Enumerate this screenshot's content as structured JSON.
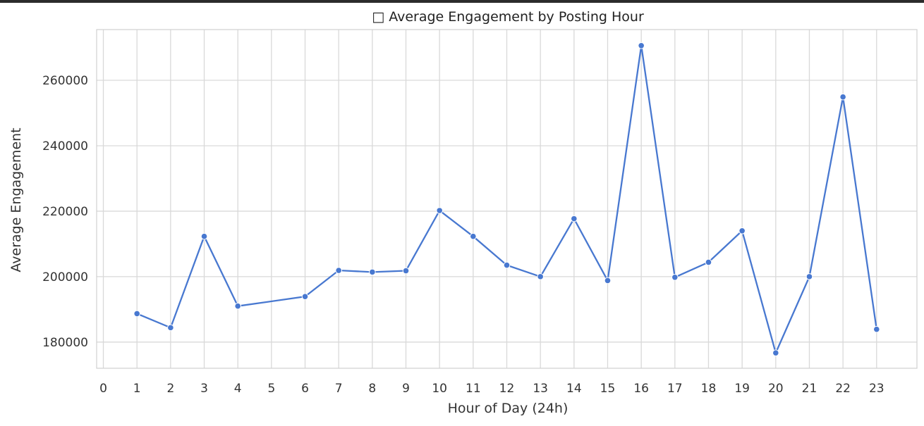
{
  "colors": {
    "line": "#4878d0",
    "grid": "#d9d9d9",
    "frame": "#d0d0d0",
    "text": "#333333",
    "topbar": "#2b2b2b"
  },
  "chart_data": {
    "type": "line",
    "title": "□ Average Engagement by Posting Hour",
    "xlabel": "Hour of Day (24h)",
    "ylabel": "Average Engagement",
    "xlim": [
      -0.2,
      24.2
    ],
    "ylim": [
      172000,
      275500
    ],
    "x_ticks": [
      0,
      1,
      2,
      3,
      4,
      5,
      6,
      7,
      8,
      9,
      10,
      11,
      12,
      13,
      14,
      15,
      16,
      17,
      18,
      19,
      20,
      21,
      22,
      23
    ],
    "y_ticks": [
      180000,
      200000,
      220000,
      240000,
      260000
    ],
    "grid": true,
    "marker": "circle",
    "series": [
      {
        "x": [
          1,
          2,
          3,
          4,
          6,
          7,
          8,
          9,
          10,
          11,
          12,
          13,
          14,
          15,
          16,
          17,
          18,
          19,
          20,
          21,
          22,
          23
        ],
        "y": [
          188700,
          184400,
          212300,
          191000,
          193900,
          201900,
          201400,
          201800,
          220200,
          212300,
          203500,
          200000,
          217700,
          198800,
          270600,
          199800,
          204400,
          214000,
          176700,
          200000,
          254900,
          183900
        ]
      }
    ]
  }
}
